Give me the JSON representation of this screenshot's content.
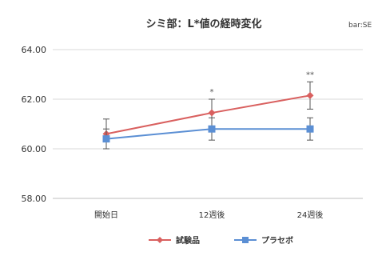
{
  "chart_data": {
    "type": "line",
    "title": "シミ部：L*値の経時変化",
    "note": "bar:SE",
    "categories": [
      "開始日",
      "12週後",
      "24週後"
    ],
    "ylim": [
      58.0,
      64.0
    ],
    "yticks": [
      "58.00",
      "60.00",
      "62.00",
      "64.00"
    ],
    "ytick_values": [
      58,
      60,
      62,
      64
    ],
    "grid": true,
    "legend_position": "bottom",
    "series": [
      {
        "name": "試験品",
        "values": [
          60.6,
          61.45,
          62.15
        ],
        "error": [
          0.6,
          0.55,
          0.55
        ],
        "color": "#d9605f",
        "marker": "diamond"
      },
      {
        "name": "プラセボ",
        "values": [
          60.4,
          60.8,
          60.8
        ],
        "error": [
          0.4,
          0.45,
          0.45
        ],
        "color": "#5b8fd4",
        "marker": "square"
      }
    ],
    "annotations": [
      {
        "category_index": 1,
        "text": "*"
      },
      {
        "category_index": 2,
        "text": "**"
      }
    ]
  }
}
